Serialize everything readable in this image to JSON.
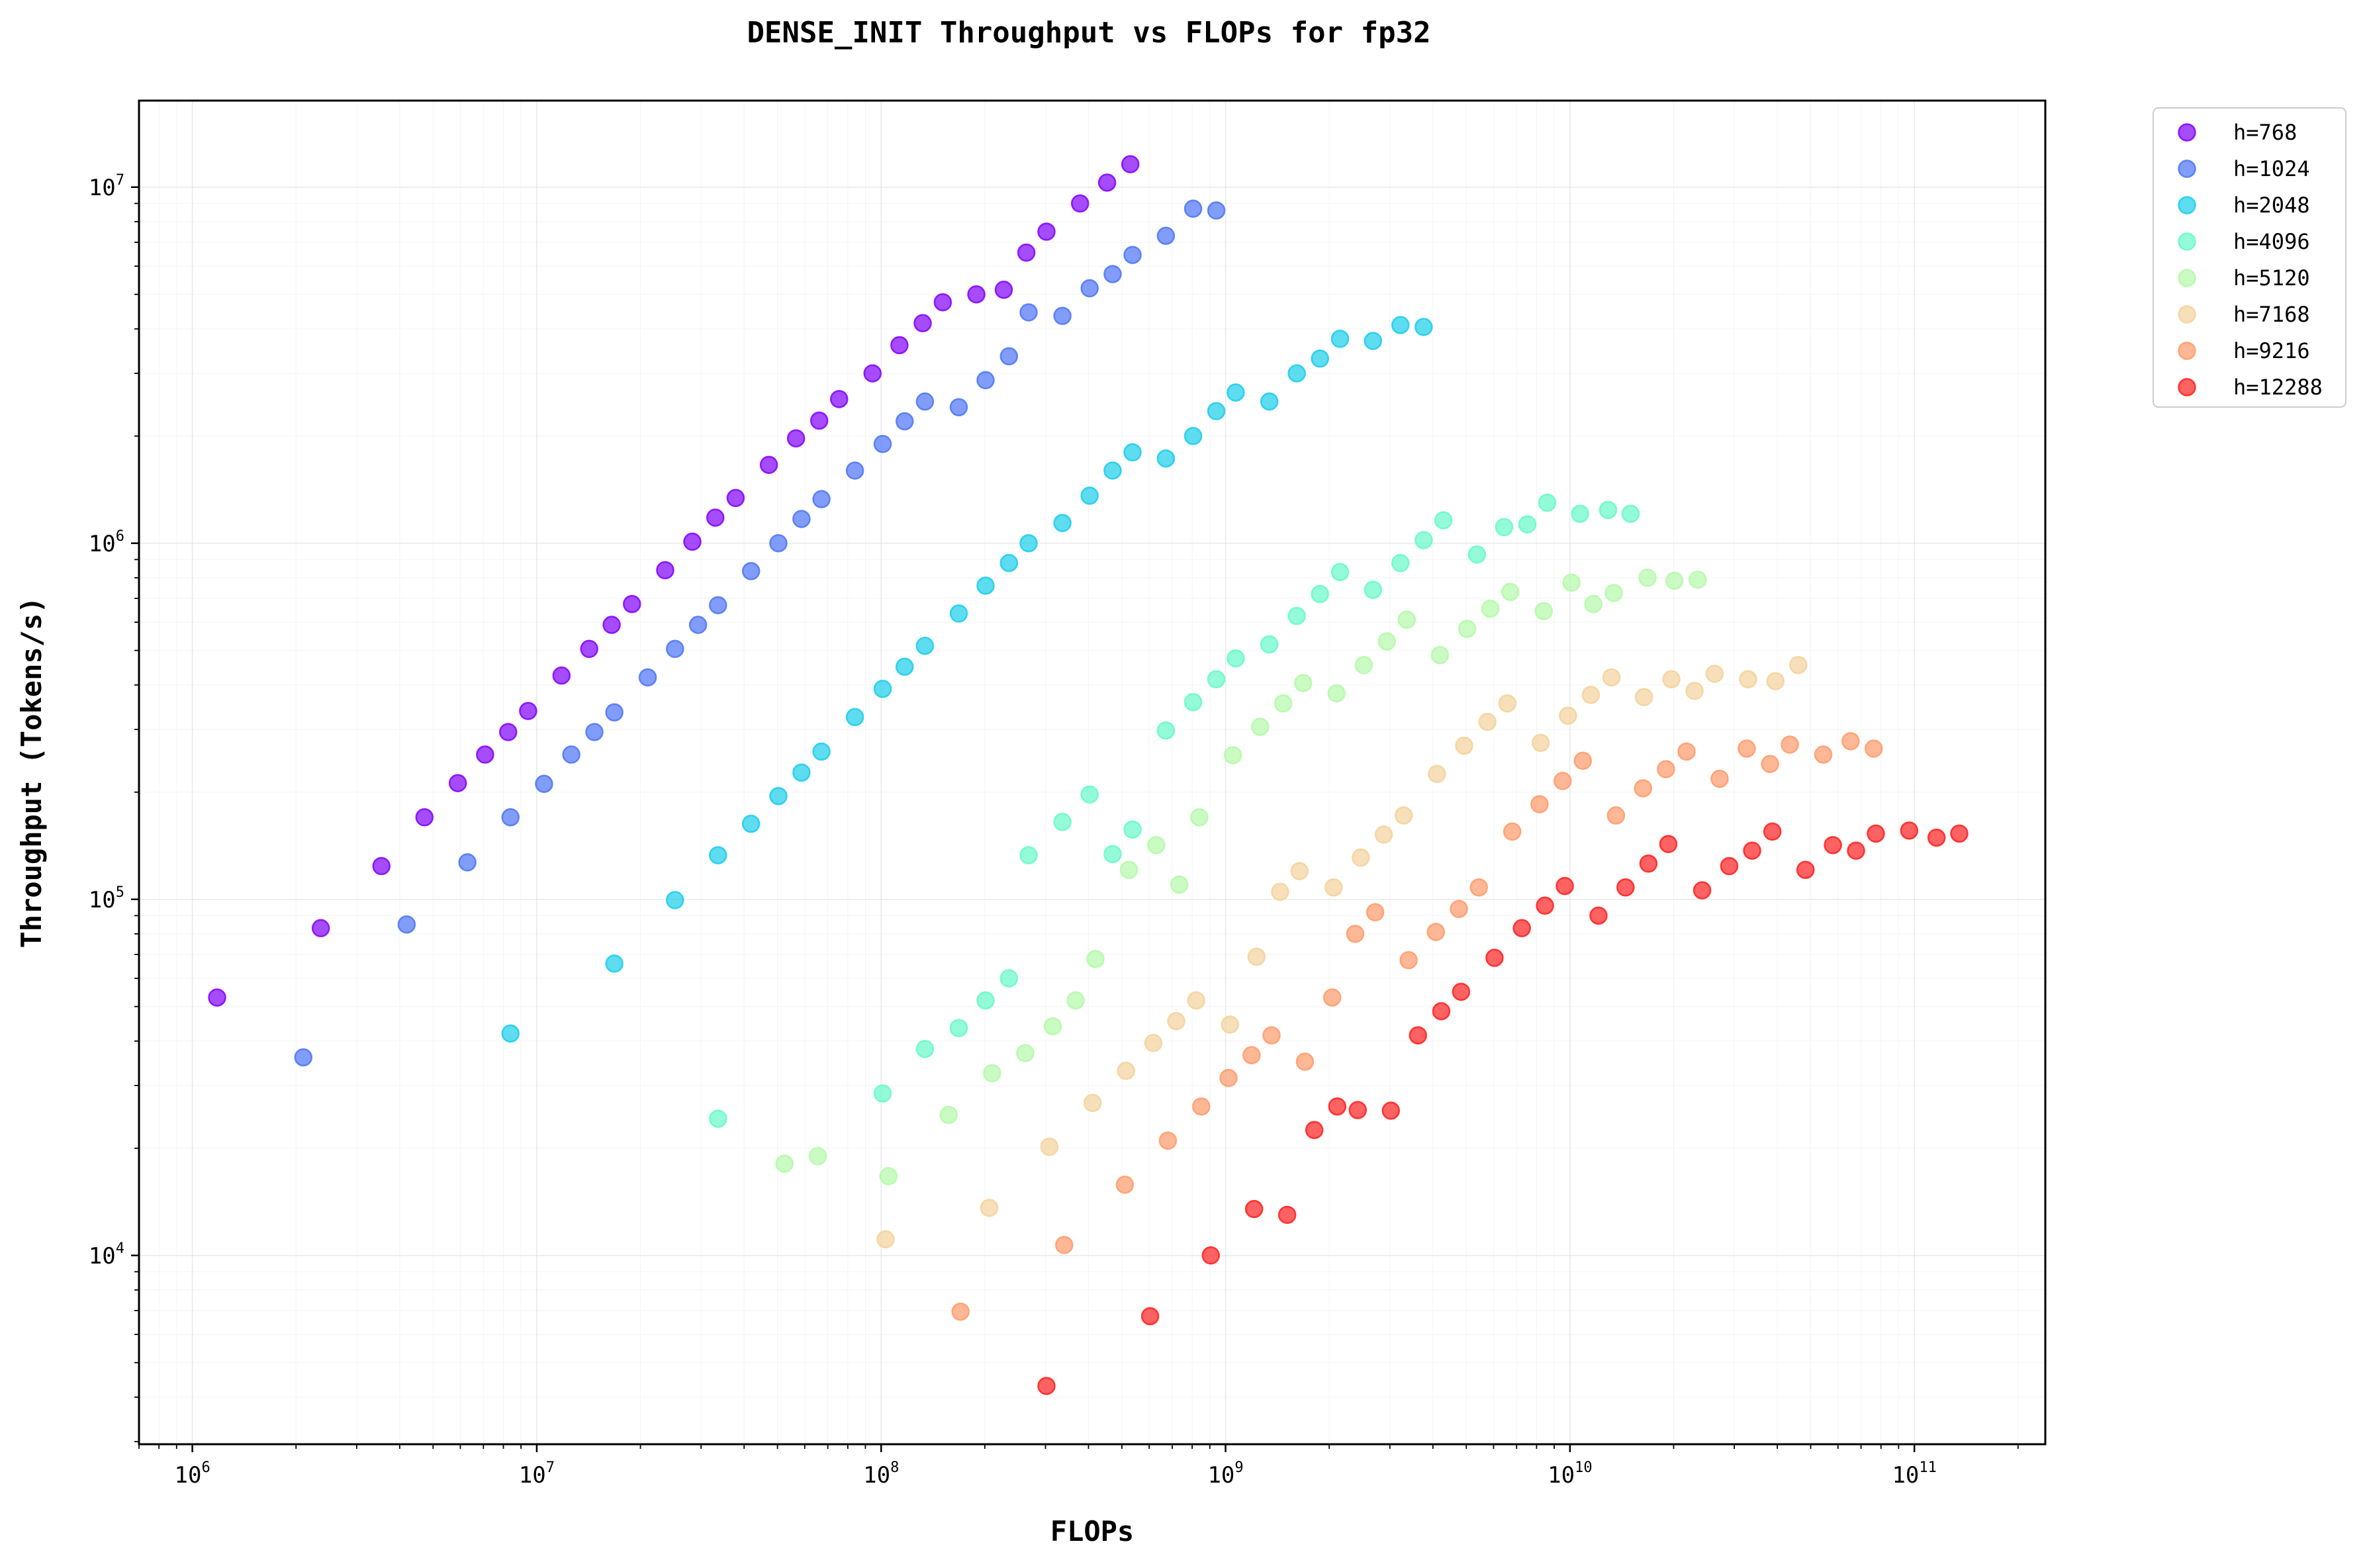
{
  "chart_data": {
    "type": "scatter",
    "title": "DENSE_INIT Throughput vs FLOPs for fp32",
    "xlabel": "FLOPs",
    "ylabel": "Throughput (Tokens/s)",
    "xscale": "log",
    "yscale": "log",
    "xlim": [
      700000.0,
      240000000000.0
    ],
    "ylim": [
      2950.0,
      17500000.0
    ],
    "x_ticks": [
      {
        "value": 1000000.0,
        "base": "10",
        "exp": "6"
      },
      {
        "value": 10000000.0,
        "base": "10",
        "exp": "7"
      },
      {
        "value": 100000000.0,
        "base": "10",
        "exp": "8"
      },
      {
        "value": 1000000000.0,
        "base": "10",
        "exp": "9"
      },
      {
        "value": 10000000000.0,
        "base": "10",
        "exp": "10"
      },
      {
        "value": 100000000000.0,
        "base": "10",
        "exp": "11"
      }
    ],
    "y_ticks": [
      {
        "value": 10000.0,
        "base": "10",
        "exp": "4"
      },
      {
        "value": 100000.0,
        "base": "10",
        "exp": "5"
      },
      {
        "value": 1000000.0,
        "base": "10",
        "exp": "6"
      },
      {
        "value": 10000000.0,
        "base": "10",
        "exp": "7"
      }
    ],
    "grid": true,
    "legend_position": "outside-top-right",
    "series": [
      {
        "name": "h=768",
        "color": "#8000ff",
        "points": [
          [
            1180000.0,
            53000.0
          ],
          [
            2360000.0,
            83000.0
          ],
          [
            3540000.0,
            124000.0
          ],
          [
            4720000.0,
            170000.0
          ],
          [
            5900000.0,
            212000.0
          ],
          [
            7080000.0,
            255000.0
          ],
          [
            8260000.0,
            295000.0
          ],
          [
            9440000.0,
            338000.0
          ],
          [
            11800000.0,
            425000.0
          ],
          [
            14200000.0,
            505000.0
          ],
          [
            16500000.0,
            590000.0
          ],
          [
            18900000.0,
            675000.0
          ],
          [
            23600000.0,
            840000.0
          ],
          [
            28300000.0,
            1010000.0
          ],
          [
            33000000.0,
            1180000.0
          ],
          [
            37800000.0,
            1340000.0
          ],
          [
            47200000.0,
            1660000.0
          ],
          [
            56600000.0,
            1970000.0
          ],
          [
            66100000.0,
            2210000.0
          ],
          [
            75500000.0,
            2540000.0
          ],
          [
            94400000.0,
            3000000.0
          ],
          [
            113000000.0,
            3600000.0
          ],
          [
            132000000.0,
            4150000.0
          ],
          [
            151000000.0,
            4750000.0
          ],
          [
            189000000.0,
            5000000.0
          ],
          [
            227000000.0,
            5150000.0
          ],
          [
            264000000.0,
            6550000.0
          ],
          [
            302000000.0,
            7500000.0
          ],
          [
            378000000.0,
            9000000.0
          ],
          [
            453000000.0,
            10300000.0
          ],
          [
            529000000.0,
            11600000.0
          ]
        ]
      },
      {
        "name": "h=1024",
        "color": "#4c74f7",
        "points": [
          [
            2100000.0,
            36000.0
          ],
          [
            4190000.0,
            85000.0
          ],
          [
            6290000.0,
            127000.0
          ],
          [
            8390000.0,
            170000.0
          ],
          [
            10500000.0,
            211000.0
          ],
          [
            12600000.0,
            255000.0
          ],
          [
            14700000.0,
            295000.0
          ],
          [
            16800000.0,
            335000.0
          ],
          [
            21000000.0,
            420000.0
          ],
          [
            25200000.0,
            505000.0
          ],
          [
            29400000.0,
            590000.0
          ],
          [
            33600000.0,
            670000.0
          ],
          [
            41900000.0,
            835000.0
          ],
          [
            50300000.0,
            1000000.0
          ],
          [
            58700000.0,
            1170000.0
          ],
          [
            67100000.0,
            1330000.0
          ],
          [
            83900000.0,
            1600000.0
          ],
          [
            101000000.0,
            1900000.0
          ],
          [
            117000000.0,
            2200000.0
          ],
          [
            134000000.0,
            2500000.0
          ],
          [
            168000000.0,
            2410000.0
          ],
          [
            201000000.0,
            2870000.0
          ],
          [
            235000000.0,
            3350000.0
          ],
          [
            268000000.0,
            4450000.0
          ],
          [
            336000000.0,
            4350000.0
          ],
          [
            403000000.0,
            5200000.0
          ],
          [
            470000000.0,
            5700000.0
          ],
          [
            537000000.0,
            6450000.0
          ],
          [
            671000000.0,
            7300000.0
          ],
          [
            805000000.0,
            8700000.0
          ],
          [
            940000000.0,
            8600000.0
          ]
        ]
      },
      {
        "name": "h=2048",
        "color": "#1acdea",
        "points": [
          [
            8390000.0,
            42000.0
          ],
          [
            16800000.0,
            66000.0
          ],
          [
            25200000.0,
            99500.0
          ],
          [
            33600000.0,
            133000.0
          ],
          [
            41900000.0,
            163000.0
          ],
          [
            50300000.0,
            195000.0
          ],
          [
            58700000.0,
            227000.0
          ],
          [
            67100000.0,
            260000.0
          ],
          [
            83900000.0,
            325000.0
          ],
          [
            101000000.0,
            390000.0
          ],
          [
            117000000.0,
            450000.0
          ],
          [
            134000000.0,
            515000.0
          ],
          [
            168000000.0,
            635000.0
          ],
          [
            201000000.0,
            760000.0
          ],
          [
            235000000.0,
            880000.0
          ],
          [
            268000000.0,
            1000000.0
          ],
          [
            336000000.0,
            1140000.0
          ],
          [
            403000000.0,
            1360000.0
          ],
          [
            470000000.0,
            1600000.0
          ],
          [
            537000000.0,
            1800000.0
          ],
          [
            671000000.0,
            1730000.0
          ],
          [
            805000000.0,
            2000000.0
          ],
          [
            940000000.0,
            2350000.0
          ],
          [
            1070000000.0,
            2650000.0
          ],
          [
            1340000000.0,
            2500000.0
          ],
          [
            1610000000.0,
            3000000.0
          ],
          [
            1880000000.0,
            3300000.0
          ],
          [
            2150000000.0,
            3750000.0
          ],
          [
            2680000000.0,
            3700000.0
          ],
          [
            3220000000.0,
            4100000.0
          ],
          [
            3760000000.0,
            4050000.0
          ]
        ]
      },
      {
        "name": "h=4096",
        "color": "#66f9c8",
        "points": [
          [
            33600000.0,
            24200.0
          ],
          [
            101000000.0,
            28500.0
          ],
          [
            134000000.0,
            38000.0
          ],
          [
            168000000.0,
            43500.0
          ],
          [
            201000000.0,
            52000.0
          ],
          [
            235000000.0,
            60000.0
          ],
          [
            268000000.0,
            133000.0
          ],
          [
            336000000.0,
            165000.0
          ],
          [
            403000000.0,
            197000.0
          ],
          [
            470000000.0,
            134000.0
          ],
          [
            537000000.0,
            157000.0
          ],
          [
            671000000.0,
            298000.0
          ],
          [
            805000000.0,
            358000.0
          ],
          [
            940000000.0,
            415000.0
          ],
          [
            1070000000.0,
            475000.0
          ],
          [
            1340000000.0,
            520000.0
          ],
          [
            1610000000.0,
            625000.0
          ],
          [
            1880000000.0,
            720000.0
          ],
          [
            2150000000.0,
            830000.0
          ],
          [
            2680000000.0,
            740000.0
          ],
          [
            3220000000.0,
            880000.0
          ],
          [
            3760000000.0,
            1020000.0
          ],
          [
            4290000000.0,
            1160000.0
          ],
          [
            5370000000.0,
            930000.0
          ],
          [
            6440000000.0,
            1110000.0
          ],
          [
            7520000000.0,
            1130000.0
          ],
          [
            8590000000.0,
            1300000.0
          ],
          [
            10700000000.0,
            1210000.0
          ],
          [
            12900000000.0,
            1240000.0
          ],
          [
            15000000000.0,
            1210000.0
          ]
        ]
      },
      {
        "name": "h=5120",
        "color": "#b3f9a8",
        "points": [
          [
            52400000.0,
            18100.0
          ],
          [
            65500000.0,
            19000.0
          ],
          [
            105000000.0,
            16700.0
          ],
          [
            157000000.0,
            24800.0
          ],
          [
            210000000.0,
            32500.0
          ],
          [
            262000000.0,
            37000.0
          ],
          [
            315000000.0,
            44000.0
          ],
          [
            367000000.0,
            52000.0
          ],
          [
            419000000.0,
            68000.0
          ],
          [
            524000000.0,
            121000.0
          ],
          [
            629000000.0,
            142000.0
          ],
          [
            734000000.0,
            110000.0
          ],
          [
            839000000.0,
            170000.0
          ],
          [
            1050000000.0,
            254000.0
          ],
          [
            1260000000.0,
            305000.0
          ],
          [
            1470000000.0,
            355000.0
          ],
          [
            1680000000.0,
            405000.0
          ],
          [
            2100000000.0,
            379000.0
          ],
          [
            2520000000.0,
            455000.0
          ],
          [
            2940000000.0,
            530000.0
          ],
          [
            3360000000.0,
            610000.0
          ],
          [
            4190000000.0,
            485000.0
          ],
          [
            5030000000.0,
            575000.0
          ],
          [
            5870000000.0,
            655000.0
          ],
          [
            6710000000.0,
            730000.0
          ],
          [
            8390000000.0,
            645000.0
          ],
          [
            10100000000.0,
            775000.0
          ],
          [
            11700000000.0,
            675000.0
          ],
          [
            13400000000.0,
            725000.0
          ],
          [
            16800000000.0,
            800000.0
          ],
          [
            20100000000.0,
            785000.0
          ],
          [
            23500000000.0,
            790000.0
          ]
        ]
      },
      {
        "name": "h=7168",
        "color": "#f3d29b",
        "points": [
          [
            103000000.0,
            11100.0
          ],
          [
            206000000.0,
            13600.0
          ],
          [
            308000000.0,
            20200.0
          ],
          [
            411000000.0,
            26800.0
          ],
          [
            514000000.0,
            33000.0
          ],
          [
            617000000.0,
            39500.0
          ],
          [
            719000000.0,
            45500.0
          ],
          [
            822000000.0,
            52000.0
          ],
          [
            1030000000.0,
            44500.0
          ],
          [
            1230000000.0,
            69000.0
          ],
          [
            1440000000.0,
            105000.0
          ],
          [
            1640000000.0,
            120000.0
          ],
          [
            2060000000.0,
            108000.0
          ],
          [
            2470000000.0,
            131000.0
          ],
          [
            2880000000.0,
            152000.0
          ],
          [
            3290000000.0,
            172000.0
          ],
          [
            4110000000.0,
            225000.0
          ],
          [
            4930000000.0,
            270000.0
          ],
          [
            5760000000.0,
            315000.0
          ],
          [
            6580000000.0,
            355000.0
          ],
          [
            8220000000.0,
            275000.0
          ],
          [
            9870000000.0,
            328000.0
          ],
          [
            11500000000.0,
            375000.0
          ],
          [
            13200000000.0,
            420000.0
          ],
          [
            16400000000.0,
            370000.0
          ],
          [
            19700000000.0,
            415000.0
          ],
          [
            23000000000.0,
            385000.0
          ],
          [
            26300000000.0,
            430000.0
          ],
          [
            32900000000.0,
            415000.0
          ],
          [
            39500000000.0,
            410000.0
          ],
          [
            46000000000.0,
            455000.0
          ]
        ]
      },
      {
        "name": "h=9216",
        "color": "#ff9a6a",
        "points": [
          [
            170000000.0,
            6950.0
          ],
          [
            340000000.0,
            10700.0
          ],
          [
            510000000.0,
            15800.0
          ],
          [
            680000000.0,
            21000.0
          ],
          [
            850000000.0,
            26200.0
          ],
          [
            1020000000.0,
            31500.0
          ],
          [
            1190000000.0,
            36500.0
          ],
          [
            1360000000.0,
            41500.0
          ],
          [
            1700000000.0,
            35000.0
          ],
          [
            2040000000.0,
            53000.0
          ],
          [
            2380000000.0,
            80000.0
          ],
          [
            2720000000.0,
            92000.0
          ],
          [
            3400000000.0,
            67500.0
          ],
          [
            4080000000.0,
            81000.0
          ],
          [
            4760000000.0,
            94000.0
          ],
          [
            5440000000.0,
            108000.0
          ],
          [
            6800000000.0,
            155000.0
          ],
          [
            8160000000.0,
            185000.0
          ],
          [
            9520000000.0,
            215000.0
          ],
          [
            10900000000.0,
            245000.0
          ],
          [
            13600000000.0,
            172000.0
          ],
          [
            16300000000.0,
            205000.0
          ],
          [
            19000000000.0,
            232000.0
          ],
          [
            21800000000.0,
            260000.0
          ],
          [
            27200000000.0,
            218000.0
          ],
          [
            32600000000.0,
            265000.0
          ],
          [
            38100000000.0,
            240000.0
          ],
          [
            43500000000.0,
            272000.0
          ],
          [
            54400000000.0,
            255000.0
          ],
          [
            65300000000.0,
            278000.0
          ],
          [
            76200000000.0,
            265000.0
          ]
        ]
      },
      {
        "name": "h=12288",
        "color": "#ff1f1f",
        "points": [
          [
            302000000.0,
            4300.0
          ],
          [
            604000000.0,
            6750.0
          ],
          [
            906000000.0,
            10000.0
          ],
          [
            1210000000.0,
            13500.0
          ],
          [
            1510000000.0,
            13000.0
          ],
          [
            1810000000.0,
            22500.0
          ],
          [
            2110000000.0,
            26200.0
          ],
          [
            2420000000.0,
            25600.0
          ],
          [
            3020000000.0,
            25500.0
          ],
          [
            3620000000.0,
            41500.0
          ],
          [
            4230000000.0,
            48500.0
          ],
          [
            4830000000.0,
            55000.0
          ],
          [
            6040000000.0,
            68500.0
          ],
          [
            7250000000.0,
            83000.0
          ],
          [
            8460000000.0,
            96000.0
          ],
          [
            9660000000.0,
            109000.0
          ],
          [
            12100000000.0,
            90000.0
          ],
          [
            14500000000.0,
            108000.0
          ],
          [
            16900000000.0,
            126000.0
          ],
          [
            19300000000.0,
            143000.0
          ],
          [
            24200000000.0,
            106000.0
          ],
          [
            29000000000.0,
            124000.0
          ],
          [
            33800000000.0,
            137000.0
          ],
          [
            38700000000.0,
            155000.0
          ],
          [
            48300000000.0,
            121000.0
          ],
          [
            58000000000.0,
            142000.0
          ],
          [
            67700000000.0,
            137000.0
          ],
          [
            77300000000.0,
            153000.0
          ],
          [
            96600000000.0,
            156000.0
          ],
          [
            116000000000.0,
            149000.0
          ],
          [
            135000000000.0,
            153000.0
          ]
        ]
      }
    ]
  }
}
